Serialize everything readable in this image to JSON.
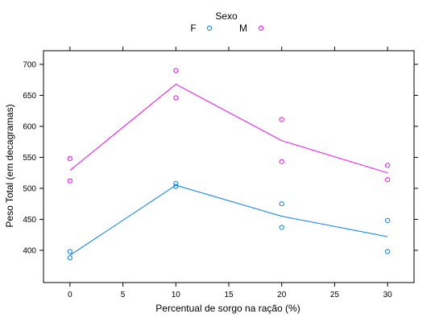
{
  "chart_data": {
    "type": "scatter",
    "title": "",
    "xlabel": "Percentual de sorgo na ração (%)",
    "ylabel": "Peso Total (em decagramas)",
    "xlim": [
      -2.5,
      32.5
    ],
    "ylim": [
      348,
      722
    ],
    "x_ticks": [
      0,
      5,
      10,
      15,
      20,
      25,
      30
    ],
    "y_ticks": [
      400,
      450,
      500,
      550,
      600,
      650,
      700
    ],
    "grid": false,
    "legend": {
      "title": "Sexo",
      "placement": "top-center",
      "entries": [
        "F",
        "M"
      ]
    },
    "series": [
      {
        "name": "F",
        "color": "#0080ff",
        "points": [
          {
            "x": 0,
            "y": 398
          },
          {
            "x": 0,
            "y": 388
          },
          {
            "x": 10,
            "y": 508
          },
          {
            "x": 10,
            "y": 503
          },
          {
            "x": 20,
            "y": 475
          },
          {
            "x": 20,
            "y": 437
          },
          {
            "x": 30,
            "y": 448
          },
          {
            "x": 30,
            "y": 398
          }
        ],
        "line": [
          {
            "x": 0,
            "y": 392
          },
          {
            "x": 10,
            "y": 505
          },
          {
            "x": 20,
            "y": 455
          },
          {
            "x": 30,
            "y": 422
          }
        ]
      },
      {
        "name": "M",
        "color": "#ff00ff",
        "points": [
          {
            "x": 0,
            "y": 548
          },
          {
            "x": 0,
            "y": 512
          },
          {
            "x": 10,
            "y": 690
          },
          {
            "x": 10,
            "y": 646
          },
          {
            "x": 20,
            "y": 611
          },
          {
            "x": 20,
            "y": 543
          },
          {
            "x": 30,
            "y": 537
          },
          {
            "x": 30,
            "y": 514
          }
        ],
        "line": [
          {
            "x": 0,
            "y": 529
          },
          {
            "x": 10,
            "y": 668
          },
          {
            "x": 20,
            "y": 577
          },
          {
            "x": 30,
            "y": 525
          }
        ]
      }
    ]
  }
}
